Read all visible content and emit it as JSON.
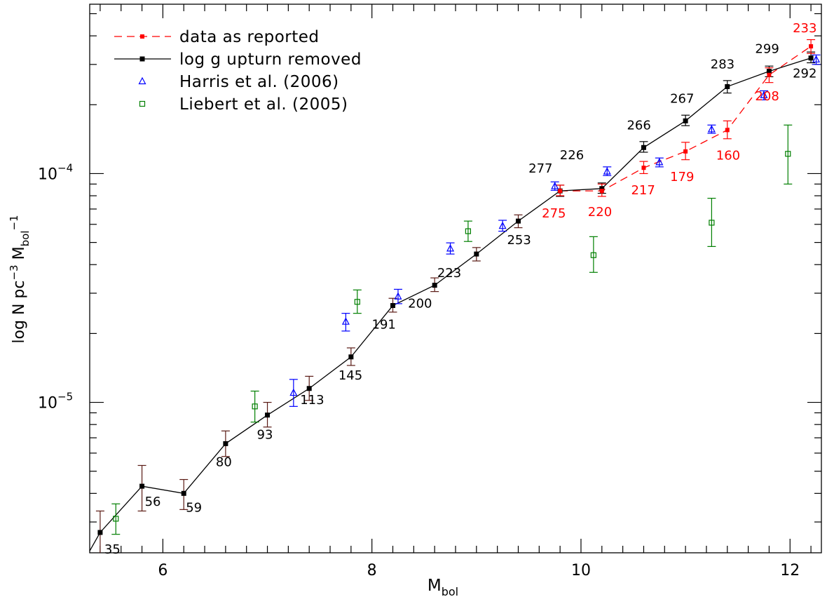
{
  "chart_data": {
    "type": "scatter",
    "xlabel": "M",
    "xlabel_sub": "bol",
    "ylabel_parts": [
      "log N pc",
      "−3",
      " M",
      "bol",
      "−1"
    ],
    "xlim": [
      5.3,
      12.3
    ],
    "ylim": [
      2.2e-06,
      0.00055
    ],
    "yscale": "log",
    "x_ticks": [
      6,
      8,
      10,
      12
    ],
    "x_tick_labels": [
      "6",
      "8",
      "10",
      "12"
    ],
    "y_major_ticks": [
      1e-05,
      0.0001
    ],
    "y_tick_labels": [
      {
        "base": "10",
        "exp": "−5"
      },
      {
        "base": "10",
        "exp": "−4"
      }
    ],
    "legend_position": "top-left",
    "grid": false,
    "colors": {
      "reported": "#ff0000",
      "removed": "#000000",
      "harris": "#0000ff",
      "liebert": "#007f00",
      "err_shared": "#5a1a14"
    },
    "series": [
      {
        "name": "data as reported",
        "style": "dashed-red",
        "x": [
          9.8,
          10.2,
          10.6,
          11.0,
          11.4,
          11.8,
          12.2
        ],
        "y": [
          8.4e-05,
          8.4e-05,
          0.000106,
          0.000125,
          0.000155,
          0.00027,
          0.00036
        ],
        "err_lo": [
          8e-05,
          7.95e-05,
          0.0001,
          0.000115,
          0.000142,
          0.00025,
          0.000335
        ],
        "err_hi": [
          8.9e-05,
          9e-05,
          0.000113,
          0.000137,
          0.00017,
          0.00029,
          0.000385
        ],
        "labels": [
          "275",
          "220",
          "217",
          "179",
          "160",
          "208",
          "233"
        ]
      },
      {
        "name": "log g upturn removed",
        "style": "solid-black",
        "x": [
          5.4,
          5.8,
          6.2,
          6.6,
          7.0,
          7.4,
          7.8,
          8.2,
          8.6,
          9.0,
          9.4,
          9.8,
          10.2,
          10.6,
          11.0,
          11.4,
          11.8,
          12.2
        ],
        "y": [
          2.7e-06,
          4.3e-06,
          4e-06,
          6.6e-06,
          8.8e-06,
          1.15e-05,
          1.58e-05,
          2.65e-05,
          3.25e-05,
          4.45e-05,
          6.2e-05,
          8.4e-05,
          8.6e-05,
          0.00013,
          0.00017,
          0.00024,
          0.00028,
          0.00032
        ],
        "err_lo": [
          2e-06,
          3.35e-06,
          3.4e-06,
          5.8e-06,
          7.8e-06,
          1.02e-05,
          1.45e-05,
          2.48e-05,
          3.05e-05,
          4.15e-05,
          5.8e-05,
          7.95e-05,
          8.2e-05,
          0.000124,
          0.000162,
          0.000225,
          0.000265,
          0.000305
        ],
        "err_hi": [
          3.35e-06,
          5.3e-06,
          4.6e-06,
          7.5e-06,
          1e-05,
          1.3e-05,
          1.73e-05,
          2.85e-05,
          3.5e-05,
          4.75e-05,
          6.6e-05,
          8.9e-05,
          9.1e-05,
          0.000138,
          0.00018,
          0.000255,
          0.000295,
          0.00034
        ],
        "labels": [
          "35",
          "56",
          "59",
          "80",
          "93",
          "113",
          "145",
          "191",
          "200",
          "223",
          "253",
          "277",
          "226",
          "266",
          "267",
          "283",
          "299",
          "292"
        ]
      },
      {
        "name": "Harris et al. (2006)",
        "style": "triangle-blue",
        "x": [
          7.25,
          7.75,
          8.25,
          8.75,
          9.25,
          9.75,
          10.25,
          10.75,
          11.25,
          11.75,
          12.25
        ],
        "y": [
          1.1e-05,
          2.25e-05,
          2.9e-05,
          4.7e-05,
          5.9e-05,
          8.8e-05,
          0.000102,
          0.000112,
          0.000156,
          0.00022,
          0.000315
        ],
        "err_lo": [
          9.6e-06,
          2.05e-05,
          2.7e-05,
          4.45e-05,
          5.6e-05,
          8.45e-05,
          9.8e-05,
          0.000107,
          0.00015,
          0.00021,
          0.0003
        ],
        "err_hi": [
          1.26e-05,
          2.45e-05,
          3.12e-05,
          4.98e-05,
          6.25e-05,
          9.2e-05,
          0.000107,
          0.000117,
          0.000163,
          0.00023,
          0.00033
        ]
      },
      {
        "name": "Liebert et al. (2005)",
        "style": "square-green",
        "x": [
          5.55,
          6.88,
          7.86,
          8.92,
          10.12,
          11.25,
          11.98
        ],
        "y": [
          3.1e-06,
          9.6e-06,
          2.75e-05,
          5.6e-05,
          4.4e-05,
          6.1e-05,
          0.000122
        ],
        "err_lo": [
          2.65e-06,
          8.2e-06,
          2.45e-05,
          5.05e-05,
          3.7e-05,
          4.8e-05,
          9e-05
        ],
        "err_hi": [
          3.6e-06,
          1.12e-05,
          3.1e-05,
          6.2e-05,
          5.3e-05,
          7.8e-05,
          0.000163
        ]
      }
    ]
  }
}
